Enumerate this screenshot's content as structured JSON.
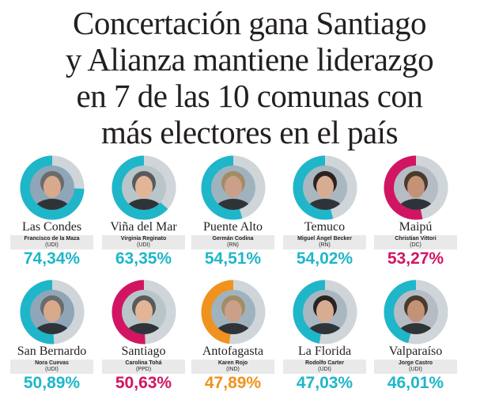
{
  "headline": [
    "Concertación gana Santiago",
    "y Alianza mantiene liderazgo",
    "en 7 de las 10 comunas con",
    "más electores en el país"
  ],
  "colors": {
    "track": "#cfd5d9",
    "alianza": "#1fb6c9",
    "concertacion": "#d11563",
    "independiente": "#f0921e"
  },
  "communes": [
    {
      "commune": "Las Condes",
      "candidate": "Francisco de la Maza",
      "party": "(UDI)",
      "percent_label": "74,34%",
      "percent": 74.34,
      "color": "#1fb6c9",
      "photo": "portrait-photo"
    },
    {
      "commune": "Viña del Mar",
      "candidate": "Virginia Reginato",
      "party": "(UDI)",
      "percent_label": "63,35%",
      "percent": 63.35,
      "color": "#1fb6c9",
      "photo": "portrait-photo"
    },
    {
      "commune": "Puente Alto",
      "candidate": "Germán Codina",
      "party": "(RN)",
      "percent_label": "54,51%",
      "percent": 54.51,
      "color": "#1fb6c9",
      "photo": "portrait-photo"
    },
    {
      "commune": "Temuco",
      "candidate": "Miguel Ángel Becker",
      "party": "(RN)",
      "percent_label": "54,02%",
      "percent": 54.02,
      "color": "#1fb6c9",
      "photo": "portrait-photo"
    },
    {
      "commune": "Maipú",
      "candidate": "Christian Vittori",
      "party": "(DC)",
      "percent_label": "53,27%",
      "percent": 53.27,
      "color": "#d11563",
      "photo": "portrait-photo"
    },
    {
      "commune": "San Bernardo",
      "candidate": "Nora Cuevas",
      "party": "(UDI)",
      "percent_label": "50,89%",
      "percent": 50.89,
      "color": "#1fb6c9",
      "photo": "portrait-photo"
    },
    {
      "commune": "Santiago",
      "candidate": "Carolina Tohá",
      "party": "(PPD)",
      "percent_label": "50,63%",
      "percent": 50.63,
      "color": "#d11563",
      "photo": "portrait-photo"
    },
    {
      "commune": "Antofagasta",
      "candidate": "Karen Rojo",
      "party": "(IND)",
      "percent_label": "47,89%",
      "percent": 47.89,
      "color": "#f0921e",
      "photo": "portrait-photo"
    },
    {
      "commune": "La Florida",
      "candidate": "Rodolfo Carter",
      "party": "(UDI)",
      "percent_label": "47,03%",
      "percent": 47.03,
      "color": "#1fb6c9",
      "photo": "portrait-photo"
    },
    {
      "commune": "Valparaíso",
      "candidate": "Jorge Castro",
      "party": "(UDI)",
      "percent_label": "46,01%",
      "percent": 46.01,
      "color": "#1fb6c9",
      "photo": "portrait-photo"
    }
  ]
}
